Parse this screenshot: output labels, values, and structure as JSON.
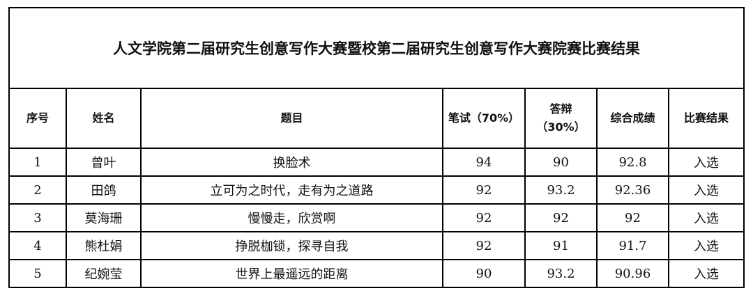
{
  "title": "人文学院第二届研究生创意写作大赛暨校第二届研究生创意写作大赛院赛比赛结果",
  "headers": [
    "序号",
    "姓名",
    "题目",
    "笔试（70%）",
    "答辩（30%）",
    "综合成绩",
    "比赛结果"
  ],
  "rows": [
    {
      "no": "1",
      "name": "曾叶",
      "topic": "换脸术",
      "written": "94",
      "defense": "90",
      "total": "92.8",
      "result": "入选"
    },
    {
      "no": "2",
      "name": "田鸽",
      "topic": "立可为之时代，走有为之道路",
      "written": "92",
      "defense": "93.2",
      "total": "92.36",
      "result": "入选"
    },
    {
      "no": "3",
      "name": "莫海珊",
      "topic": "慢慢走，欣赏啊",
      "written": "92",
      "defense": "92",
      "total": "92",
      "result": "入选"
    },
    {
      "no": "4",
      "name": "熊杜娟",
      "topic": "挣脱枷锁，探寻自我",
      "written": "92",
      "defense": "91",
      "total": "91.7",
      "result": "入选"
    },
    {
      "no": "5",
      "name": "纪婉莹",
      "topic": "世界上最遥远的距离",
      "written": "90",
      "defense": "93.2",
      "total": "90.96",
      "result": "入选"
    }
  ]
}
